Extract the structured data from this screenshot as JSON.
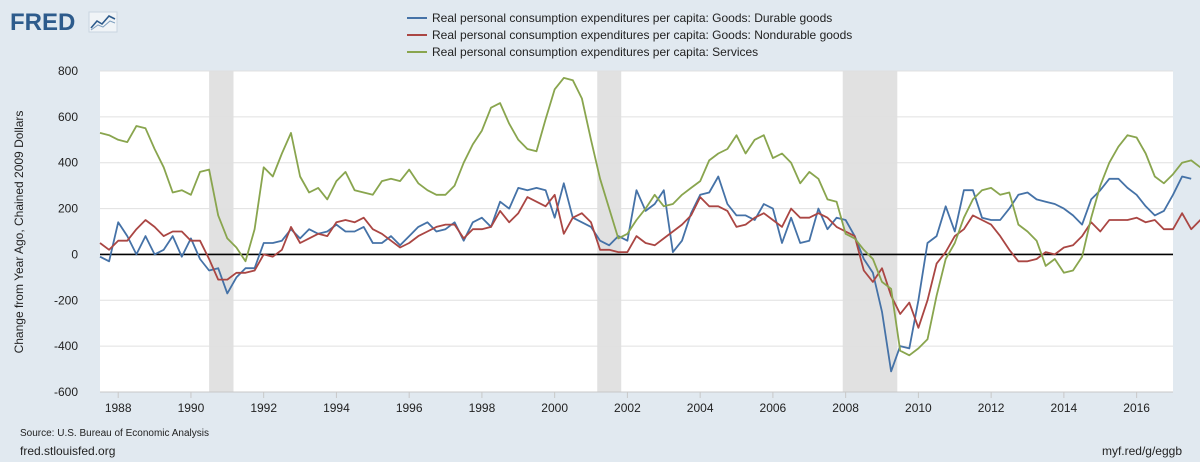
{
  "brand": {
    "name": "FRED",
    "accent": "#2d5b8c"
  },
  "chart_data": {
    "type": "line",
    "ylabel": "Change from Year Ago, Chained 2009 Dollars",
    "xlabel": "",
    "ylim": [
      -600,
      800
    ],
    "xlim": [
      1987.5,
      2017.0
    ],
    "yticks": [
      800,
      600,
      400,
      200,
      0,
      -200,
      -400,
      -600
    ],
    "xticks": [
      1988,
      1990,
      1992,
      1994,
      1996,
      1998,
      2000,
      2002,
      2004,
      2006,
      2008,
      2010,
      2012,
      2014,
      2016
    ],
    "recessions": [
      [
        1990.5,
        1991.17
      ],
      [
        2001.17,
        2001.83
      ],
      [
        2007.92,
        2009.42
      ]
    ],
    "x_start": 1987.5,
    "x_step": 0.25,
    "series": [
      {
        "name": "Real personal consumption expenditures per capita: Goods: Durable goods",
        "color": "#4572a7",
        "values": [
          -10,
          -30,
          140,
          80,
          0,
          80,
          0,
          20,
          80,
          -10,
          70,
          -20,
          -70,
          -60,
          -170,
          -100,
          -60,
          -60,
          50,
          50,
          60,
          110,
          70,
          110,
          90,
          100,
          130,
          100,
          100,
          120,
          50,
          50,
          80,
          40,
          80,
          120,
          140,
          100,
          110,
          140,
          60,
          140,
          160,
          120,
          230,
          200,
          290,
          280,
          290,
          280,
          160,
          310,
          160,
          140,
          120,
          60,
          40,
          80,
          60,
          280,
          190,
          220,
          280,
          10,
          60,
          180,
          260,
          270,
          340,
          220,
          170,
          170,
          150,
          220,
          200,
          50,
          160,
          50,
          60,
          200,
          110,
          160,
          150,
          80,
          -20,
          -80,
          -250,
          -510,
          -400,
          -410,
          -200,
          50,
          80,
          210,
          100,
          280,
          280,
          160,
          150,
          150,
          200,
          260,
          270,
          240,
          230,
          220,
          200,
          170,
          130,
          240,
          280,
          330,
          330,
          290,
          260,
          210,
          170,
          190,
          260,
          340,
          330
        ]
      },
      {
        "name": "Real personal consumption expenditures per capita: Goods: Nondurable goods",
        "color": "#aa4643",
        "values": [
          50,
          20,
          60,
          60,
          110,
          150,
          120,
          80,
          100,
          100,
          60,
          60,
          -20,
          -110,
          -110,
          -80,
          -80,
          -70,
          0,
          -10,
          20,
          120,
          50,
          70,
          90,
          80,
          140,
          150,
          140,
          160,
          110,
          90,
          60,
          30,
          50,
          80,
          100,
          120,
          130,
          130,
          70,
          110,
          110,
          120,
          190,
          140,
          180,
          250,
          230,
          210,
          260,
          90,
          160,
          180,
          140,
          20,
          20,
          10,
          10,
          80,
          50,
          40,
          70,
          100,
          130,
          170,
          250,
          210,
          210,
          190,
          120,
          130,
          160,
          180,
          150,
          120,
          200,
          160,
          160,
          180,
          160,
          120,
          100,
          80,
          -70,
          -120,
          -60,
          -180,
          -260,
          -210,
          -320,
          -200,
          -40,
          10,
          80,
          110,
          170,
          150,
          130,
          80,
          20,
          -30,
          -30,
          -20,
          10,
          0,
          30,
          40,
          80,
          140,
          100,
          150,
          150,
          150,
          160,
          140,
          150,
          110,
          110,
          180,
          110,
          150,
          140
        ]
      },
      {
        "name": "Real personal consumption expenditures per capita: Services",
        "color": "#89a54e",
        "values": [
          530,
          520,
          500,
          490,
          560,
          550,
          460,
          380,
          270,
          280,
          260,
          360,
          370,
          170,
          70,
          30,
          -30,
          110,
          380,
          340,
          440,
          530,
          340,
          270,
          290,
          240,
          320,
          360,
          280,
          270,
          260,
          320,
          330,
          320,
          370,
          310,
          280,
          260,
          260,
          300,
          400,
          480,
          540,
          640,
          660,
          570,
          500,
          460,
          450,
          590,
          720,
          770,
          760,
          680,
          500,
          330,
          200,
          70,
          90,
          150,
          200,
          260,
          210,
          220,
          260,
          290,
          320,
          410,
          440,
          460,
          520,
          440,
          500,
          520,
          420,
          440,
          400,
          310,
          360,
          330,
          240,
          230,
          90,
          70,
          20,
          -20,
          -120,
          -150,
          -420,
          -440,
          -410,
          -370,
          -180,
          -20,
          50,
          160,
          240,
          280,
          290,
          260,
          270,
          130,
          100,
          60,
          -50,
          -20,
          -80,
          -70,
          -10,
          160,
          300,
          400,
          470,
          520,
          510,
          440,
          340,
          310,
          350,
          400,
          410,
          380
        ]
      }
    ]
  },
  "footer": {
    "source": "Source: U.S. Bureau of Economic Analysis",
    "site": "fred.stlouisfed.org",
    "short_url": "myf.red/g/eggb"
  }
}
